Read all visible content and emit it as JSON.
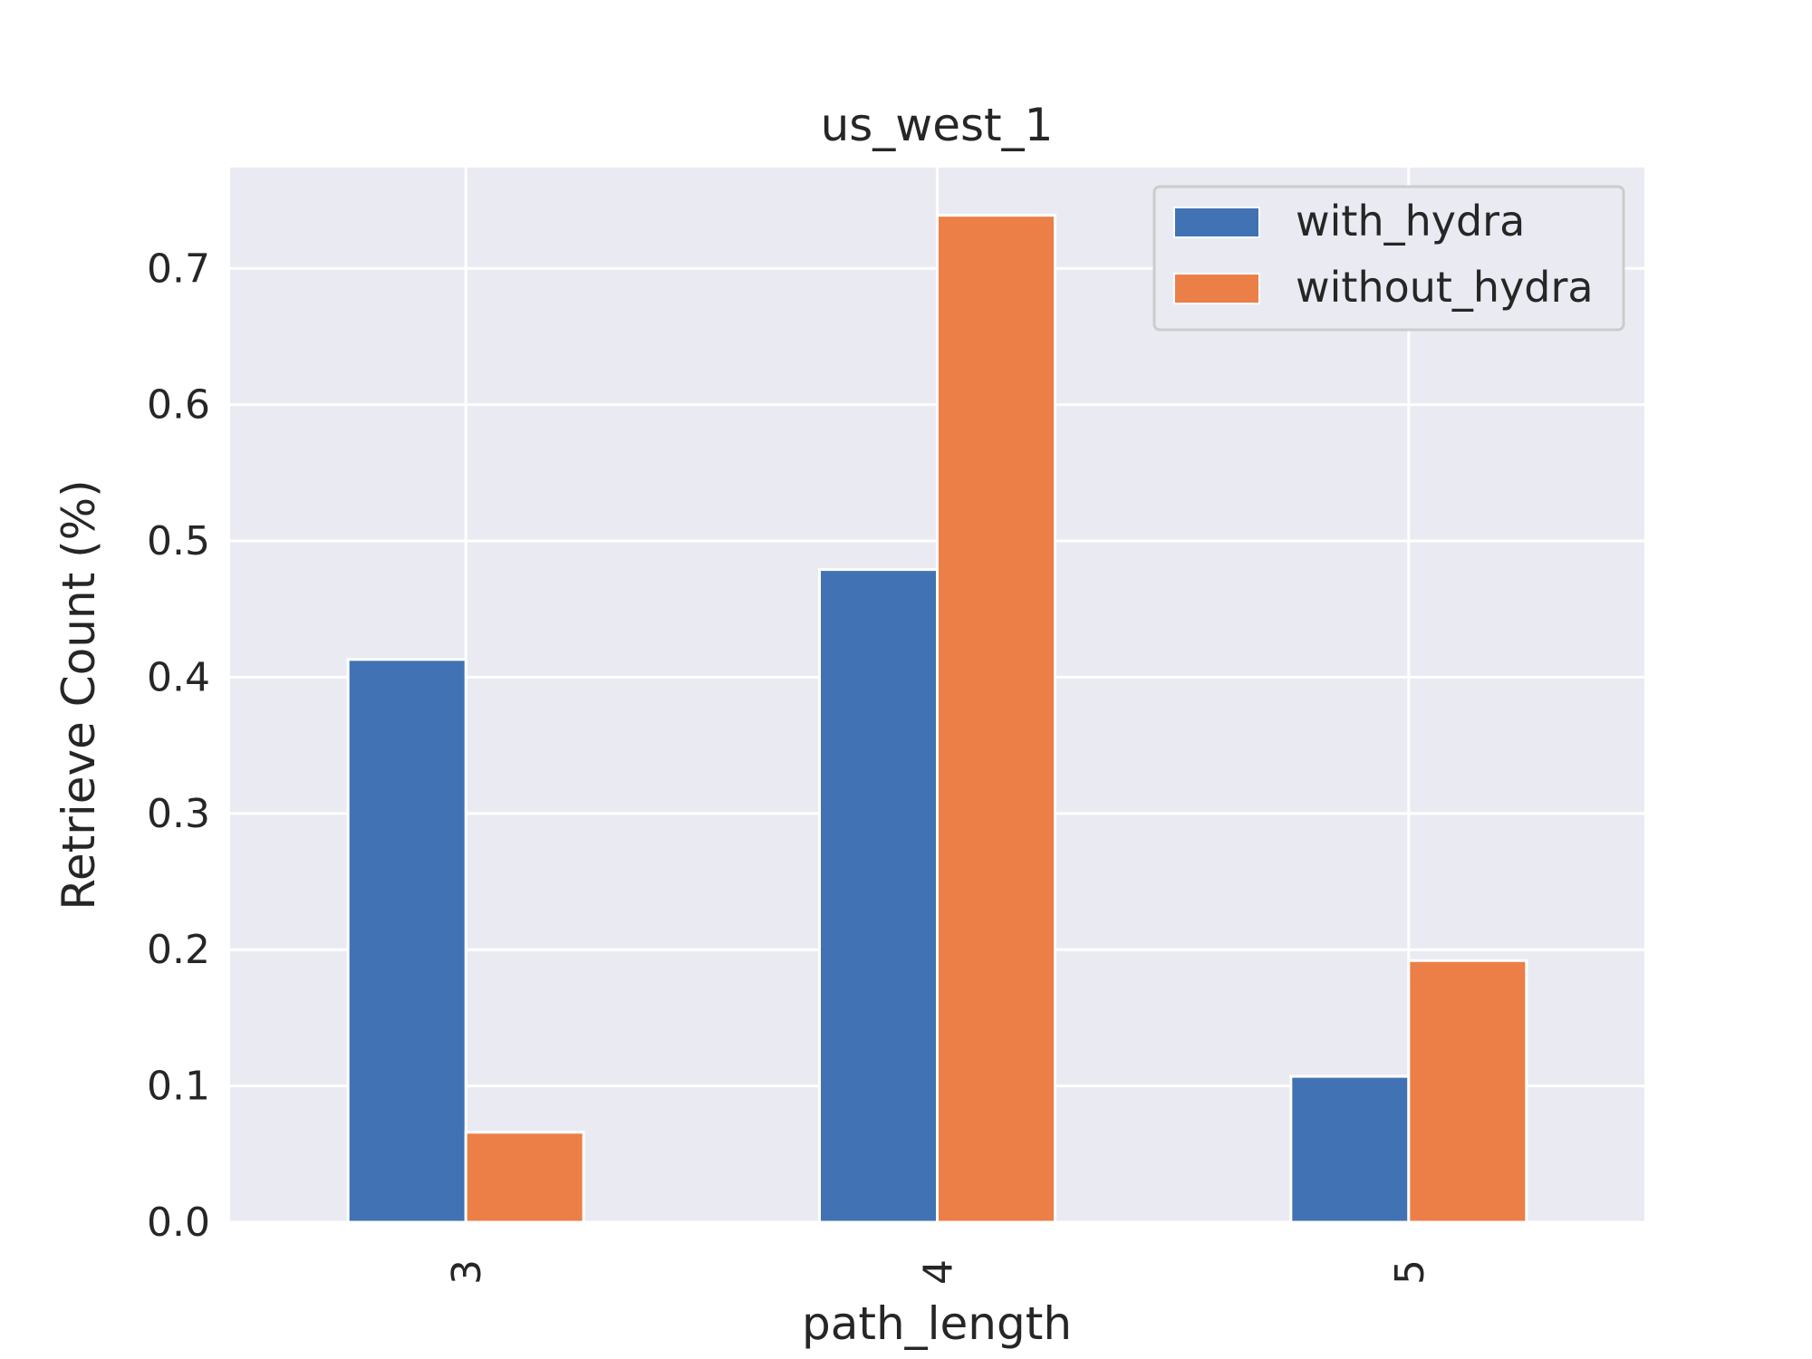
{
  "chart_data": {
    "type": "bar",
    "title": "us_west_1",
    "xlabel": "path_length",
    "ylabel": "Retrieve Count (%)",
    "categories": [
      "3",
      "4",
      "5"
    ],
    "series": [
      {
        "name": "with_hydra",
        "values": [
          0.413,
          0.479,
          0.107
        ],
        "color": "#4172b4"
      },
      {
        "name": "without_hydra",
        "values": [
          0.066,
          0.739,
          0.192
        ],
        "color": "#eb7f47"
      }
    ],
    "ylim": [
      0,
      0.774
    ],
    "yticks": [
      "0.0",
      "0.1",
      "0.2",
      "0.3",
      "0.4",
      "0.5",
      "0.6",
      "0.7"
    ],
    "ytick_values": [
      0,
      0.1,
      0.2,
      0.3,
      0.4,
      0.5,
      0.6,
      0.7
    ],
    "grid": true,
    "legend_position": "top-right",
    "background_color": "#eaeaf2"
  }
}
